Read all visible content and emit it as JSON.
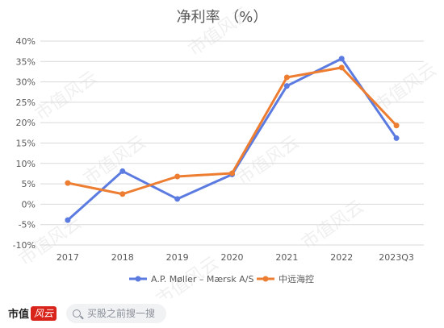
{
  "chart_data": {
    "type": "line",
    "title": "净利率 （%）",
    "categories": [
      "2017",
      "2018",
      "2019",
      "2020",
      "2021",
      "2022",
      "2023Q3"
    ],
    "series": [
      {
        "name": "A.P. Møller – Mærsk A/S",
        "values": [
          -3.9,
          8.1,
          1.3,
          7.3,
          29.0,
          35.7,
          16.2
        ],
        "color": "#5b7be0"
      },
      {
        "name": "中远海控",
        "values": [
          5.2,
          2.5,
          6.8,
          7.6,
          31.1,
          33.5,
          19.3
        ],
        "color": "#ed7d31"
      }
    ],
    "ylim": [
      -10,
      40
    ],
    "yticks": [
      "-10%",
      "-5%",
      "0%",
      "5%",
      "10%",
      "15%",
      "20%",
      "25%",
      "30%",
      "35%",
      "40%"
    ],
    "grid": true,
    "legend": "bottom"
  },
  "watermark": "市值风云",
  "footer": {
    "brand": "市值",
    "brand_badge": "风云",
    "search_text": "买股之前搜一搜"
  }
}
